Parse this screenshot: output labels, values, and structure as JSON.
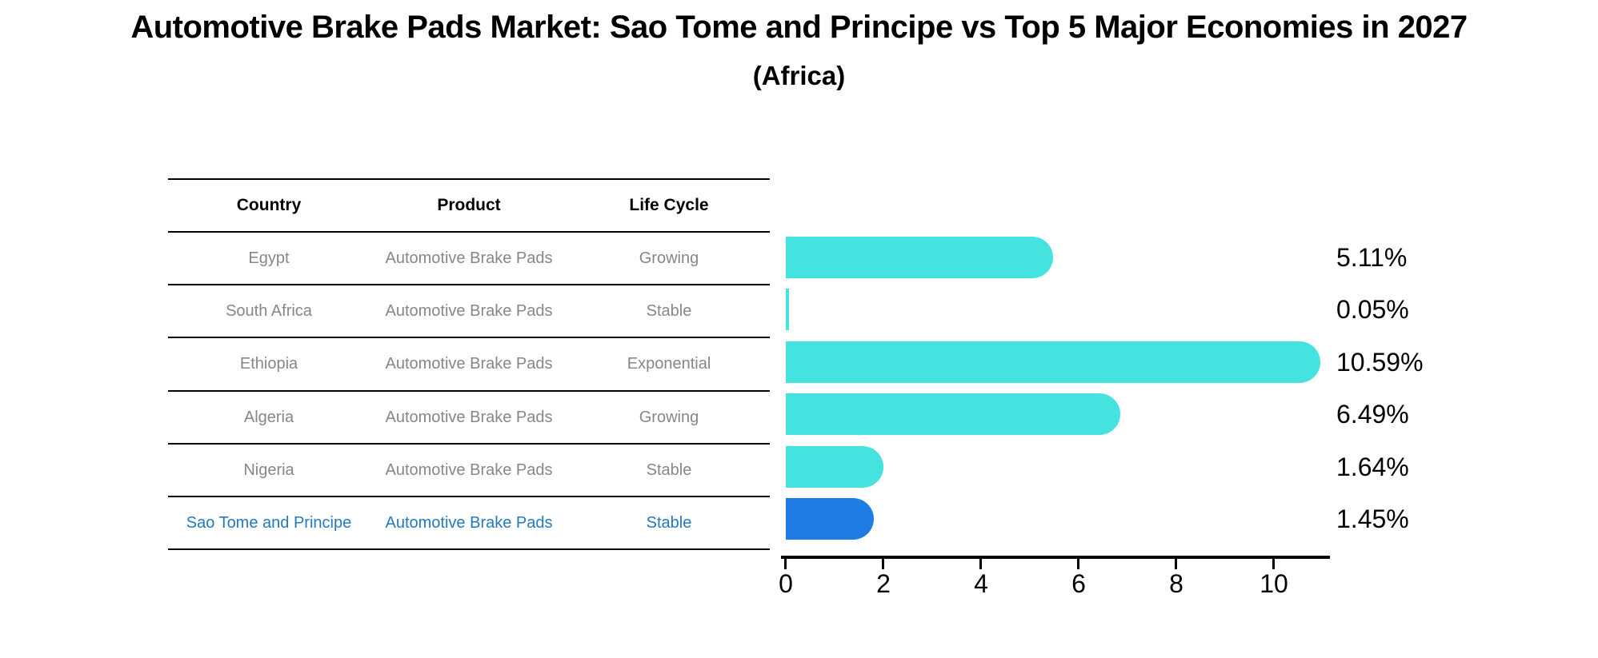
{
  "page": {
    "title": "Automotive Brake Pads Market: Sao Tome and Principe vs Top 5 Major Economies in 2027",
    "subtitle": "(Africa)"
  },
  "table": {
    "headers": {
      "country": "Country",
      "product": "Product",
      "life_cycle": "Life Cycle"
    },
    "rows": [
      {
        "country": "Egypt",
        "product": "Automotive Brake Pads",
        "life_cycle": "Growing"
      },
      {
        "country": "South Africa",
        "product": "Automotive Brake Pads",
        "life_cycle": "Stable"
      },
      {
        "country": "Ethiopia",
        "product": "Automotive Brake Pads",
        "life_cycle": "Exponential"
      },
      {
        "country": "Algeria",
        "product": "Automotive Brake Pads",
        "life_cycle": "Growing"
      },
      {
        "country": "Nigeria",
        "product": "Automotive Brake Pads",
        "life_cycle": "Stable"
      },
      {
        "country": "Sao Tome and Principe",
        "product": "Automotive Brake Pads",
        "life_cycle": "Stable"
      }
    ],
    "highlight_row_index": 5
  },
  "chart_data": {
    "type": "bar",
    "orientation": "horizontal",
    "title": "Automotive Brake Pads Market: Sao Tome and Principe vs Top 5 Major Economies in 2027 (Africa)",
    "categories": [
      "Egypt",
      "South Africa",
      "Ethiopia",
      "Algeria",
      "Nigeria",
      "Sao Tome and Principe"
    ],
    "values": [
      5.11,
      0.05,
      10.59,
      6.49,
      1.64,
      1.45
    ],
    "value_labels": [
      "5.11%",
      "0.05%",
      "10.59%",
      "6.49%",
      "1.64%",
      "1.45%"
    ],
    "x_ticks": [
      0,
      2,
      4,
      6,
      8,
      10
    ],
    "xlim": [
      0,
      11.2
    ],
    "grid": false,
    "legend": false,
    "bar_color": "#45E3E0",
    "highlight_bar_color": "#1E7CE4",
    "highlight_index": 5
  },
  "colors": {
    "bar": "#45E3E0",
    "highlight_bar": "#1E7CE4",
    "row_text": "#878787",
    "highlight_text": "#2479BE",
    "header_text": "#000000",
    "axis": "#000000",
    "background": "#FFFFFF"
  }
}
